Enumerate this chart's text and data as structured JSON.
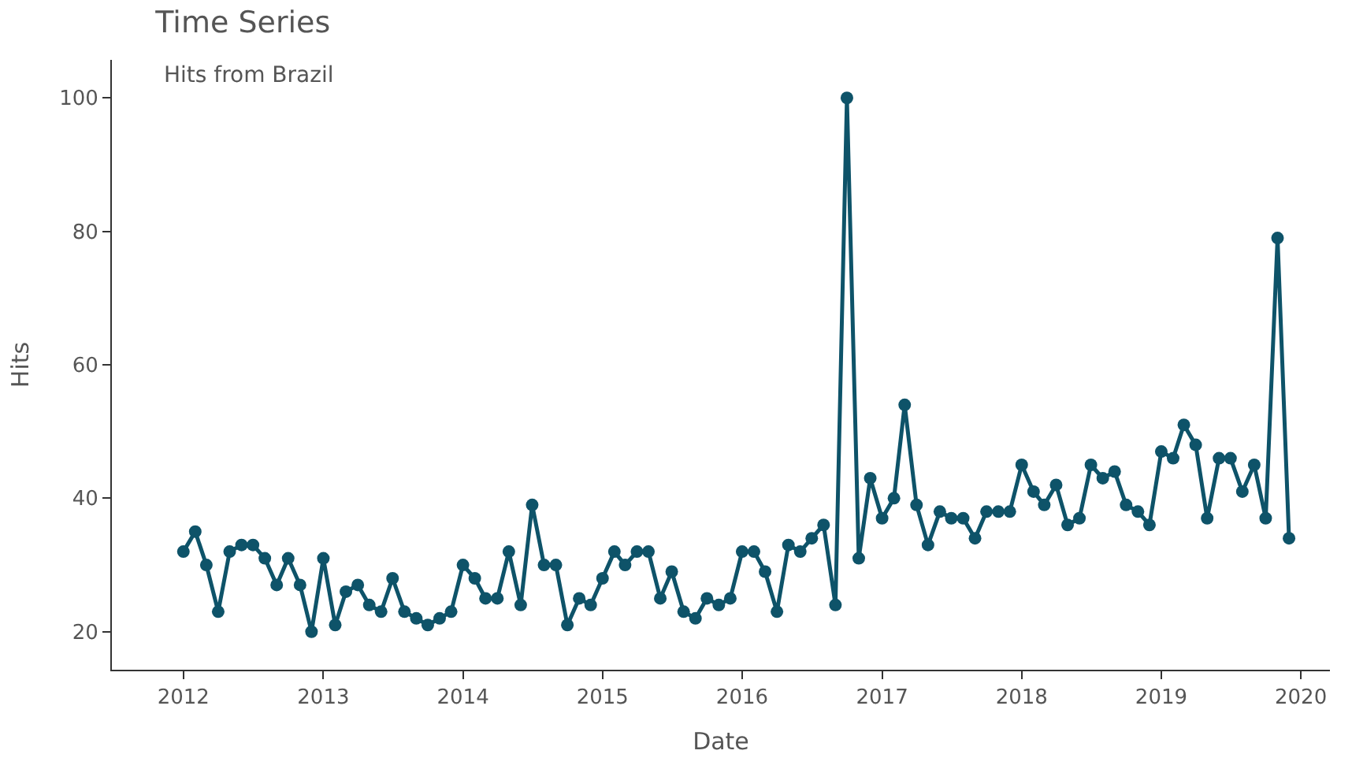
{
  "chart_data": {
    "type": "line",
    "title": "Time Series",
    "xlabel": "Date",
    "ylabel": "Hits",
    "annotations": [
      "Hits from Brazil"
    ],
    "x": [
      "2012-01",
      "2012-02",
      "2012-03",
      "2012-04",
      "2012-05",
      "2012-06",
      "2012-07",
      "2012-08",
      "2012-09",
      "2012-10",
      "2012-11",
      "2012-12",
      "2013-01",
      "2013-02",
      "2013-03",
      "2013-04",
      "2013-05",
      "2013-06",
      "2013-07",
      "2013-08",
      "2013-09",
      "2013-10",
      "2013-11",
      "2013-12",
      "2014-01",
      "2014-02",
      "2014-03",
      "2014-04",
      "2014-05",
      "2014-06",
      "2014-07",
      "2014-08",
      "2014-09",
      "2014-10",
      "2014-11",
      "2014-12",
      "2015-01",
      "2015-02",
      "2015-03",
      "2015-04",
      "2015-05",
      "2015-06",
      "2015-07",
      "2015-08",
      "2015-09",
      "2015-10",
      "2015-11",
      "2015-12",
      "2016-01",
      "2016-02",
      "2016-03",
      "2016-04",
      "2016-05",
      "2016-06",
      "2016-07",
      "2016-08",
      "2016-09",
      "2016-10",
      "2016-11",
      "2016-12",
      "2017-01",
      "2017-02",
      "2017-03",
      "2017-04",
      "2017-05",
      "2017-06",
      "2017-07",
      "2017-08",
      "2017-09",
      "2017-10",
      "2017-11",
      "2017-12",
      "2018-01",
      "2018-02",
      "2018-03",
      "2018-04",
      "2018-05",
      "2018-06",
      "2018-07",
      "2018-08",
      "2018-09",
      "2018-10",
      "2018-11",
      "2018-12",
      "2019-01",
      "2019-02",
      "2019-03",
      "2019-04",
      "2019-05",
      "2019-06",
      "2019-07",
      "2019-08",
      "2019-09",
      "2019-10",
      "2019-11",
      "2019-12"
    ],
    "series": [
      {
        "color": "#0e5369",
        "values": [
          32,
          35,
          30,
          23,
          32,
          33,
          33,
          31,
          27,
          31,
          27,
          20,
          31,
          21,
          26,
          27,
          24,
          23,
          28,
          23,
          22,
          21,
          22,
          23,
          30,
          28,
          25,
          25,
          32,
          24,
          39,
          30,
          30,
          21,
          25,
          24,
          28,
          32,
          30,
          32,
          32,
          25,
          29,
          23,
          22,
          25,
          24,
          25,
          32,
          32,
          29,
          23,
          33,
          32,
          34,
          36,
          24,
          100,
          31,
          43,
          37,
          40,
          54,
          39,
          33,
          38,
          37,
          37,
          34,
          38,
          38,
          38,
          45,
          41,
          39,
          42,
          36,
          37,
          45,
          43,
          44,
          39,
          38,
          36,
          47,
          46,
          51,
          48,
          37,
          46,
          46,
          41,
          45,
          37,
          79,
          34
        ]
      }
    ],
    "xlim": [
      "2011-06-28",
      "2020-03-17"
    ],
    "xticks": [
      {
        "value": "2012-01-01",
        "label": "2012"
      },
      {
        "value": "2013-01-01",
        "label": "2013"
      },
      {
        "value": "2014-01-01",
        "label": "2014"
      },
      {
        "value": "2015-01-01",
        "label": "2015"
      },
      {
        "value": "2016-01-01",
        "label": "2016"
      },
      {
        "value": "2017-01-01",
        "label": "2017"
      },
      {
        "value": "2018-01-01",
        "label": "2018"
      },
      {
        "value": "2019-01-01",
        "label": "2019"
      },
      {
        "value": "2020-01-01",
        "label": "2020"
      }
    ],
    "ylim": [
      14.3,
      105.7
    ],
    "yticks": [
      20,
      40,
      60,
      80,
      100
    ],
    "legend": false,
    "marker": "circle",
    "line_style": "solid"
  }
}
